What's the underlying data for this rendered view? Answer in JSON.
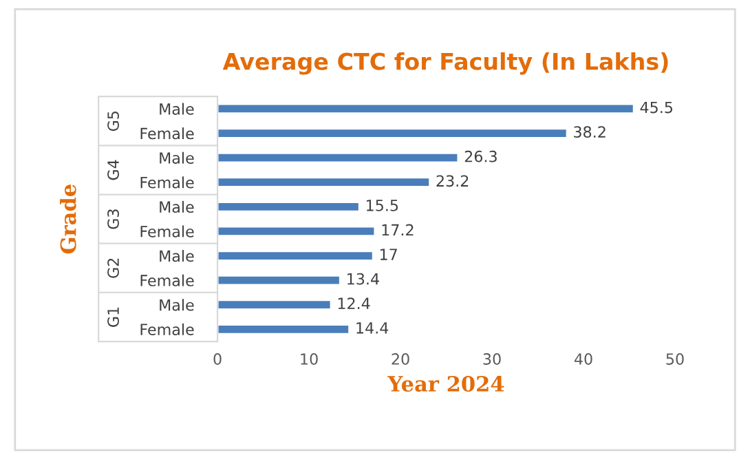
{
  "chart_data": {
    "type": "bar",
    "orientation": "horizontal",
    "title": "Average CTC for Faculty (In Lakhs)",
    "xlabel": "Year 2024",
    "ylabel": "Grade",
    "categories": [
      "Male",
      "Female",
      "Male",
      "Female",
      "Male",
      "Female",
      "Male",
      "Female",
      "Male",
      "Female"
    ],
    "values": [
      45.5,
      38.2,
      26.3,
      23.2,
      15.5,
      17.2,
      17,
      13.4,
      12.4,
      14.4
    ],
    "color": "#4a7ebb",
    "xlim": [
      0,
      50
    ],
    "xticks": [
      0,
      10,
      20,
      30,
      40,
      50
    ],
    "data_labels": true,
    "grid": false,
    "annotations": [
      "G5",
      "G4",
      "G3",
      "G2",
      "G1"
    ]
  }
}
